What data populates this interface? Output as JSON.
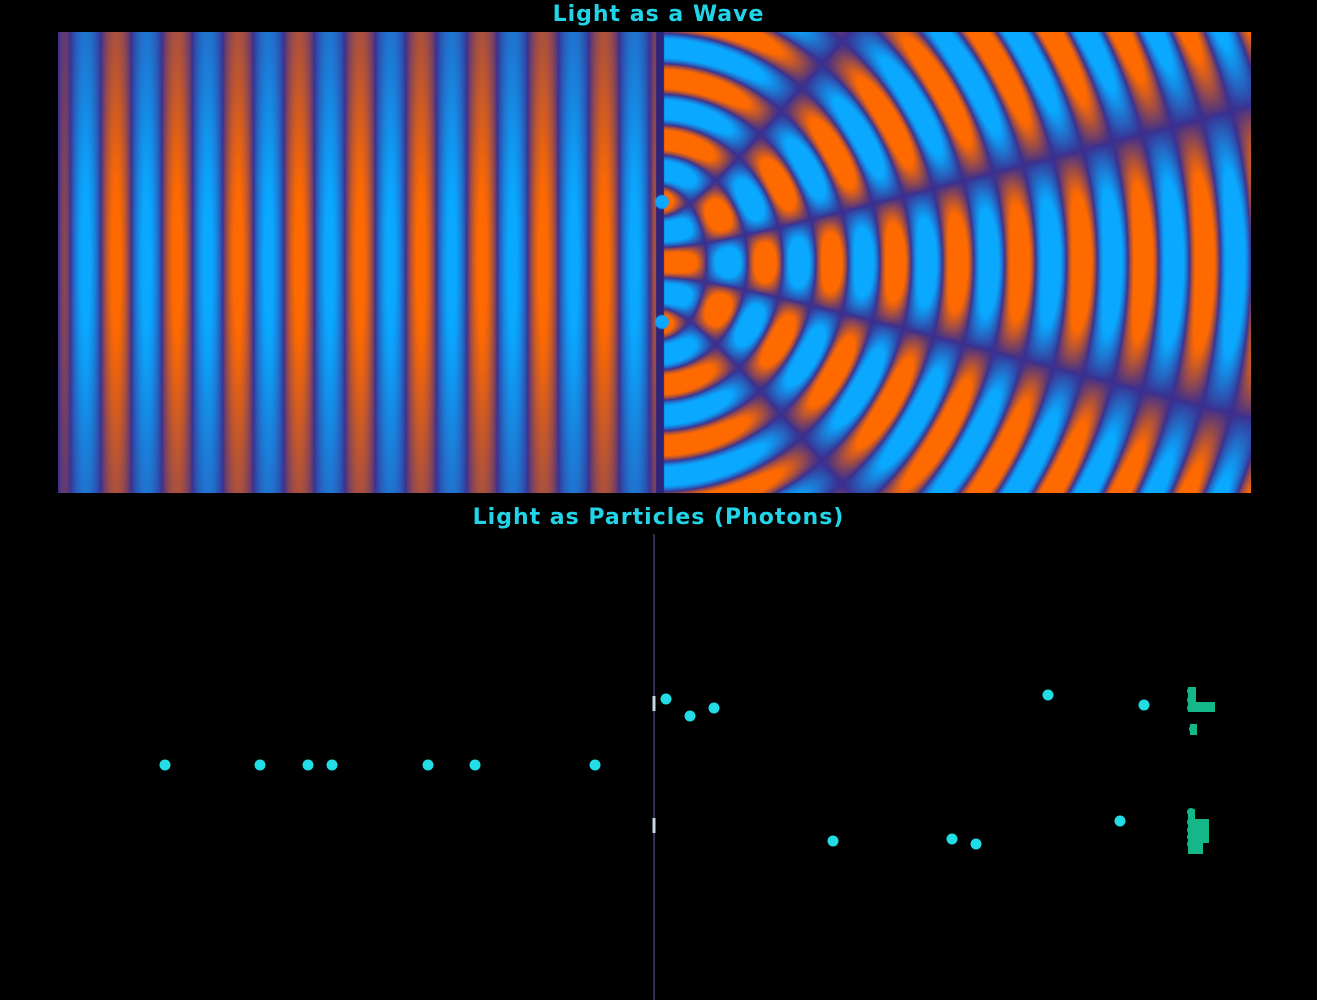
{
  "wave_panel": {
    "title": "Light as a Wave"
  },
  "particle_panel": {
    "title": "Light as Particles (Photons)"
  },
  "colors": {
    "title": "#21d4e8",
    "background": "#000000",
    "wave_crest": "#ff6a00",
    "wave_trough": "#0aa8ff",
    "wave_mid": "#3b2f8f",
    "photon": "#22dde6",
    "detector_hit": "#14b888",
    "barrier": "#3a3f6e"
  },
  "simulation": {
    "slit_count": 2,
    "mode": "double-slit interference"
  }
}
